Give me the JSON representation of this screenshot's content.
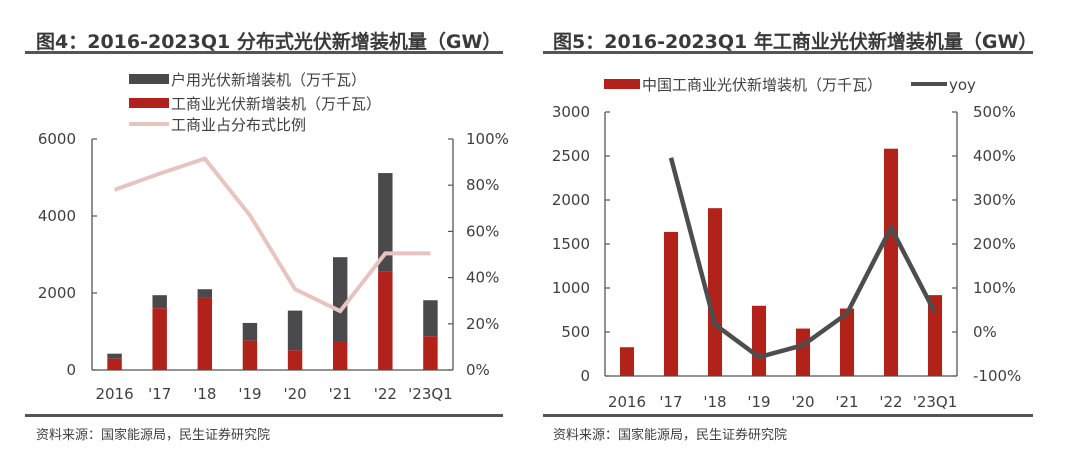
{
  "colors": {
    "household": "#4a4a4c",
    "commercial": "#b0221a",
    "ratio_line": "#e8c4c0",
    "yoy_line": "#4d4d4f",
    "axis": "#555555"
  },
  "chart_data": [
    {
      "id": "fig4",
      "type": "bar",
      "stacked": true,
      "title": "图4：2016-2023Q1 分布式光伏新增装机量（GW）",
      "source": "资料来源：国家能源局，民生证券研究院",
      "categories": [
        "2016",
        "'17",
        "'18",
        "'19",
        "'20",
        "'21",
        "'22",
        "'23Q1"
      ],
      "series": [
        {
          "name": "户用光伏新增装机（万千瓦）",
          "type": "bar",
          "axis": "left",
          "values": [
            129,
            339,
            217,
            459,
            1032,
            2202,
            2566,
            936
          ]
        },
        {
          "name": "工商业光伏新增装机（万千瓦）",
          "type": "bar",
          "axis": "left",
          "values": [
            295,
            1604,
            1881,
            763,
            511,
            728,
            2549,
            876
          ]
        },
        {
          "name": "工商业占分布式比例",
          "type": "line",
          "axis": "right",
          "values": [
            0.78,
            0.85,
            0.915,
            0.67,
            0.35,
            0.255,
            0.505,
            0.505
          ]
        }
      ],
      "left_axis": {
        "ylim": [
          0,
          6000
        ],
        "ticks": [
          "0",
          "2000",
          "4000",
          "6000"
        ],
        "tick_values": [
          0,
          2000,
          4000,
          6000
        ]
      },
      "right_axis": {
        "ylim": [
          0,
          1
        ],
        "ticks": [
          "0%",
          "20%",
          "40%",
          "60%",
          "80%",
          "100%"
        ],
        "tick_values": [
          0,
          0.2,
          0.4,
          0.6,
          0.8,
          1.0
        ]
      },
      "legend_placement": "top-center",
      "grid": false
    },
    {
      "id": "fig5",
      "type": "bar",
      "title": "图5：2016-2023Q1 年工商业光伏新增装机量（GW）",
      "source": "资料来源：国家能源局，民生证券研究院",
      "categories": [
        "2016",
        "'17",
        "'18",
        "'19",
        "'20",
        "'21",
        "'22",
        "'23Q1"
      ],
      "series": [
        {
          "name": "中国工商业光伏新增装机（万千瓦）",
          "type": "bar",
          "axis": "left",
          "values": [
            327,
            1637,
            1907,
            798,
            539,
            767,
            2583,
            919
          ]
        },
        {
          "name": "yoy",
          "type": "line",
          "axis": "right",
          "values": [
            null,
            3.96,
            0.17,
            -0.57,
            -0.3,
            0.42,
            2.37,
            0.44
          ]
        }
      ],
      "left_axis": {
        "ylim": [
          0,
          3000
        ],
        "ticks": [
          "0",
          "500",
          "1000",
          "1500",
          "2000",
          "2500",
          "3000"
        ],
        "tick_values": [
          0,
          500,
          1000,
          1500,
          2000,
          2500,
          3000
        ]
      },
      "right_axis": {
        "ylim": [
          -1,
          5
        ],
        "ticks": [
          "-100%",
          "0%",
          "100%",
          "200%",
          "300%",
          "400%",
          "500%"
        ],
        "tick_values": [
          -1,
          0,
          1,
          2,
          3,
          4,
          5
        ]
      },
      "legend_placement": "top-center",
      "grid": false
    }
  ]
}
